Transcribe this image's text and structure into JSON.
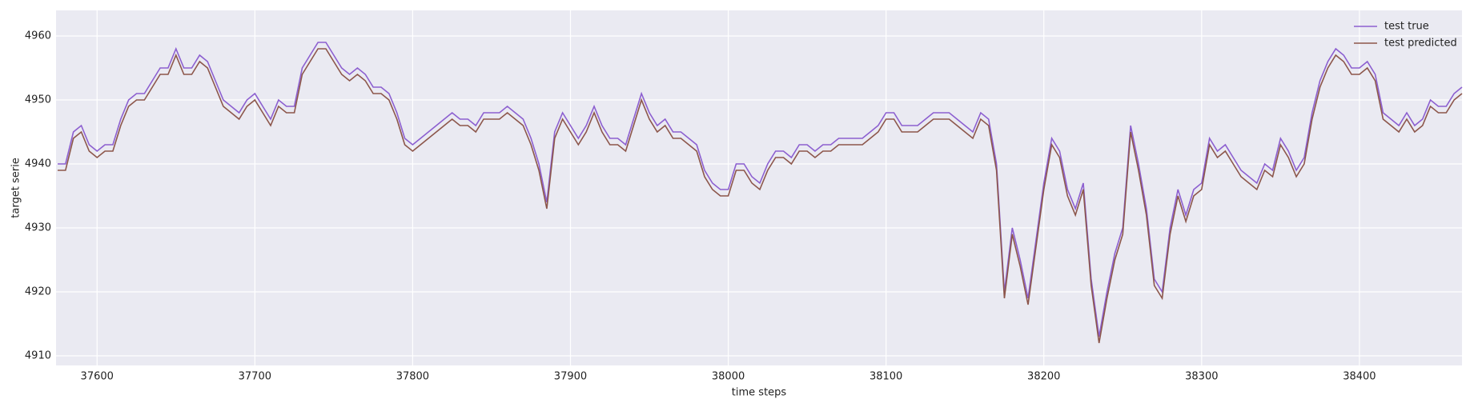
{
  "chart_data": {
    "type": "line",
    "x_label": "time steps",
    "y_label": "target serie",
    "x": [
      37575,
      37580,
      37585,
      37590,
      37595,
      37600,
      37605,
      37610,
      37615,
      37620,
      37625,
      37630,
      37635,
      37640,
      37645,
      37650,
      37655,
      37660,
      37665,
      37670,
      37675,
      37680,
      37685,
      37690,
      37695,
      37700,
      37705,
      37710,
      37715,
      37720,
      37725,
      37730,
      37735,
      37740,
      37745,
      37750,
      37755,
      37760,
      37765,
      37770,
      37775,
      37780,
      37785,
      37790,
      37795,
      37800,
      37805,
      37810,
      37815,
      37820,
      37825,
      37830,
      37835,
      37840,
      37845,
      37850,
      37855,
      37860,
      37865,
      37870,
      37875,
      37880,
      37885,
      37890,
      37895,
      37900,
      37905,
      37910,
      37915,
      37920,
      37925,
      37930,
      37935,
      37940,
      37945,
      37950,
      37955,
      37960,
      37965,
      37970,
      37975,
      37980,
      37985,
      37990,
      37995,
      38000,
      38005,
      38010,
      38015,
      38020,
      38025,
      38030,
      38035,
      38040,
      38045,
      38050,
      38055,
      38060,
      38065,
      38070,
      38075,
      38080,
      38085,
      38090,
      38095,
      38100,
      38105,
      38110,
      38115,
      38120,
      38125,
      38130,
      38135,
      38140,
      38145,
      38150,
      38155,
      38160,
      38165,
      38170,
      38175,
      38180,
      38185,
      38190,
      38195,
      38200,
      38205,
      38210,
      38215,
      38220,
      38225,
      38230,
      38235,
      38240,
      38245,
      38250,
      38255,
      38260,
      38265,
      38270,
      38275,
      38280,
      38285,
      38290,
      38295,
      38300,
      38305,
      38310,
      38315,
      38320,
      38325,
      38330,
      38335,
      38340,
      38345,
      38350,
      38355,
      38360,
      38365,
      38370,
      38375,
      38380,
      38385,
      38390,
      38395,
      38400,
      38405,
      38410,
      38415,
      38420,
      38425,
      38430,
      38435,
      38440,
      38445,
      38450,
      38455,
      38460,
      38465
    ],
    "series": [
      {
        "name": "test true",
        "color": "#8c5fd0",
        "values": [
          4940,
          4940,
          4945,
          4946,
          4943,
          4942,
          4943,
          4943,
          4947,
          4950,
          4951,
          4951,
          4953,
          4955,
          4955,
          4958,
          4955,
          4955,
          4957,
          4956,
          4953,
          4950,
          4949,
          4948,
          4950,
          4951,
          4949,
          4947,
          4950,
          4949,
          4949,
          4955,
          4957,
          4959,
          4959,
          4957,
          4955,
          4954,
          4955,
          4954,
          4952,
          4952,
          4951,
          4948,
          4944,
          4943,
          4944,
          4945,
          4946,
          4947,
          4948,
          4947,
          4947,
          4946,
          4948,
          4948,
          4948,
          4949,
          4948,
          4947,
          4944,
          4940,
          4934,
          4945,
          4948,
          4946,
          4944,
          4946,
          4949,
          4946,
          4944,
          4944,
          4943,
          4947,
          4951,
          4948,
          4946,
          4947,
          4945,
          4945,
          4944,
          4943,
          4939,
          4937,
          4936,
          4936,
          4940,
          4940,
          4938,
          4937,
          4940,
          4942,
          4942,
          4941,
          4943,
          4943,
          4942,
          4943,
          4943,
          4944,
          4944,
          4944,
          4944,
          4945,
          4946,
          4948,
          4948,
          4946,
          4946,
          4946,
          4947,
          4948,
          4948,
          4948,
          4947,
          4946,
          4945,
          4948,
          4947,
          4940,
          4920,
          4930,
          4925,
          4919,
          4928,
          4937,
          4944,
          4942,
          4936,
          4933,
          4937,
          4922,
          4913,
          4920,
          4926,
          4930,
          4946,
          4940,
          4933,
          4922,
          4920,
          4930,
          4936,
          4932,
          4936,
          4937,
          4944,
          4942,
          4943,
          4941,
          4939,
          4938,
          4937,
          4940,
          4939,
          4944,
          4942,
          4939,
          4941,
          4948,
          4953,
          4956,
          4958,
          4957,
          4955,
          4955,
          4956,
          4954,
          4948,
          4947,
          4946,
          4948,
          4946,
          4947,
          4950,
          4949,
          4949,
          4951,
          4952
        ]
      },
      {
        "name": "test predicted",
        "color": "#8c564b",
        "values": [
          4939,
          4939,
          4944,
          4945,
          4942,
          4941,
          4942,
          4942,
          4946,
          4949,
          4950,
          4950,
          4952,
          4954,
          4954,
          4957,
          4954,
          4954,
          4956,
          4955,
          4952,
          4949,
          4948,
          4947,
          4949,
          4950,
          4948,
          4946,
          4949,
          4948,
          4948,
          4954,
          4956,
          4958,
          4958,
          4956,
          4954,
          4953,
          4954,
          4953,
          4951,
          4951,
          4950,
          4947,
          4943,
          4942,
          4943,
          4944,
          4945,
          4946,
          4947,
          4946,
          4946,
          4945,
          4947,
          4947,
          4947,
          4948,
          4947,
          4946,
          4943,
          4939,
          4933,
          4944,
          4947,
          4945,
          4943,
          4945,
          4948,
          4945,
          4943,
          4943,
          4942,
          4946,
          4950,
          4947,
          4945,
          4946,
          4944,
          4944,
          4943,
          4942,
          4938,
          4936,
          4935,
          4935,
          4939,
          4939,
          4937,
          4936,
          4939,
          4941,
          4941,
          4940,
          4942,
          4942,
          4941,
          4942,
          4942,
          4943,
          4943,
          4943,
          4943,
          4944,
          4945,
          4947,
          4947,
          4945,
          4945,
          4945,
          4946,
          4947,
          4947,
          4947,
          4946,
          4945,
          4944,
          4947,
          4946,
          4939,
          4919,
          4929,
          4924,
          4918,
          4927,
          4936,
          4943,
          4941,
          4935,
          4932,
          4936,
          4921,
          4912,
          4919,
          4925,
          4929,
          4945,
          4939,
          4932,
          4921,
          4919,
          4929,
          4935,
          4931,
          4935,
          4936,
          4943,
          4941,
          4942,
          4940,
          4938,
          4937,
          4936,
          4939,
          4938,
          4943,
          4941,
          4938,
          4940,
          4947,
          4952,
          4955,
          4957,
          4956,
          4954,
          4954,
          4955,
          4953,
          4947,
          4946,
          4945,
          4947,
          4945,
          4946,
          4949,
          4948,
          4948,
          4950,
          4951
        ]
      }
    ],
    "xlim": [
      37574,
      38465
    ],
    "ylim": [
      4908.5,
      4964
    ],
    "xticks": [
      37600,
      37700,
      37800,
      37900,
      38000,
      38100,
      38200,
      38300,
      38400
    ],
    "yticks": [
      4910,
      4920,
      4930,
      4940,
      4950,
      4960
    ],
    "grid": true,
    "legend": "upper right"
  }
}
